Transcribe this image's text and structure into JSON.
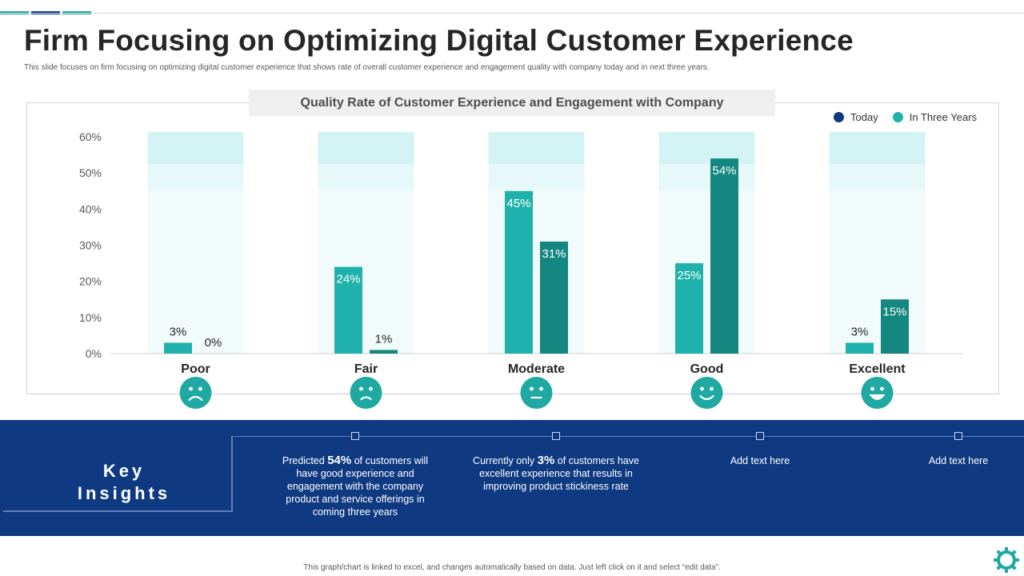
{
  "header": {
    "title": "Firm Focusing on Optimizing Digital Customer Experience",
    "subtitle": "This slide focuses on firm focusing on optimizing digital customer experience that shows rate of overall customer experience and engagement quality with company today and in next three years."
  },
  "colors": {
    "today": "#0f3a82",
    "in_three_years": "#1fb2ac",
    "bar_today": "#1fb2ac",
    "bar_three_years": "#138780",
    "band_light": "#d4f3f5",
    "band_lighter": "#f1fbfc",
    "accent_teal": "#1fa9a2",
    "navy": "#0f3a82"
  },
  "chart_data": {
    "type": "bar",
    "title": "Quality Rate of Customer Experience and Engagement with Company",
    "categories": [
      "Poor",
      "Fair",
      "Moderate",
      "Good",
      "Excellent"
    ],
    "series": [
      {
        "name": "Today",
        "values": [
          3,
          24,
          45,
          25,
          3
        ],
        "labels": [
          "3%",
          "24%",
          "45%",
          "25%",
          "3%"
        ]
      },
      {
        "name": "In Three Years",
        "values": [
          0,
          1,
          31,
          54,
          15
        ],
        "labels": [
          "0%",
          "1%",
          "31%",
          "54%",
          "15%"
        ]
      }
    ],
    "y_ticks": [
      "0%",
      "10%",
      "20%",
      "30%",
      "40%",
      "50%",
      "60%"
    ],
    "ylim": [
      0,
      60
    ],
    "ylabel": "",
    "xlabel": "",
    "legend": [
      "Today",
      "In Three Years"
    ],
    "legend_position": "top-right",
    "category_icons": [
      "very-sad-face-icon",
      "sad-face-icon",
      "neutral-face-icon",
      "smile-face-icon",
      "grin-face-icon"
    ]
  },
  "insights": {
    "title_line1": "Key",
    "title_line2": "Insights",
    "items": [
      {
        "pre": "Predicted ",
        "highlight": "54%",
        "post": " of customers will have good experience and engagement with the company product and service offerings in coming three years"
      },
      {
        "pre": "Currently only ",
        "highlight": "3%",
        "post": " of customers have excellent experience that results in improving product stickiness rate"
      },
      {
        "pre": "Add text here",
        "highlight": "",
        "post": ""
      },
      {
        "pre": "Add text here",
        "highlight": "",
        "post": ""
      }
    ]
  },
  "footer": {
    "note": "This graph/chart is linked to excel, and changes automatically based on data. Just left click on it and select “edit data”.",
    "icon": "gear-icon"
  }
}
